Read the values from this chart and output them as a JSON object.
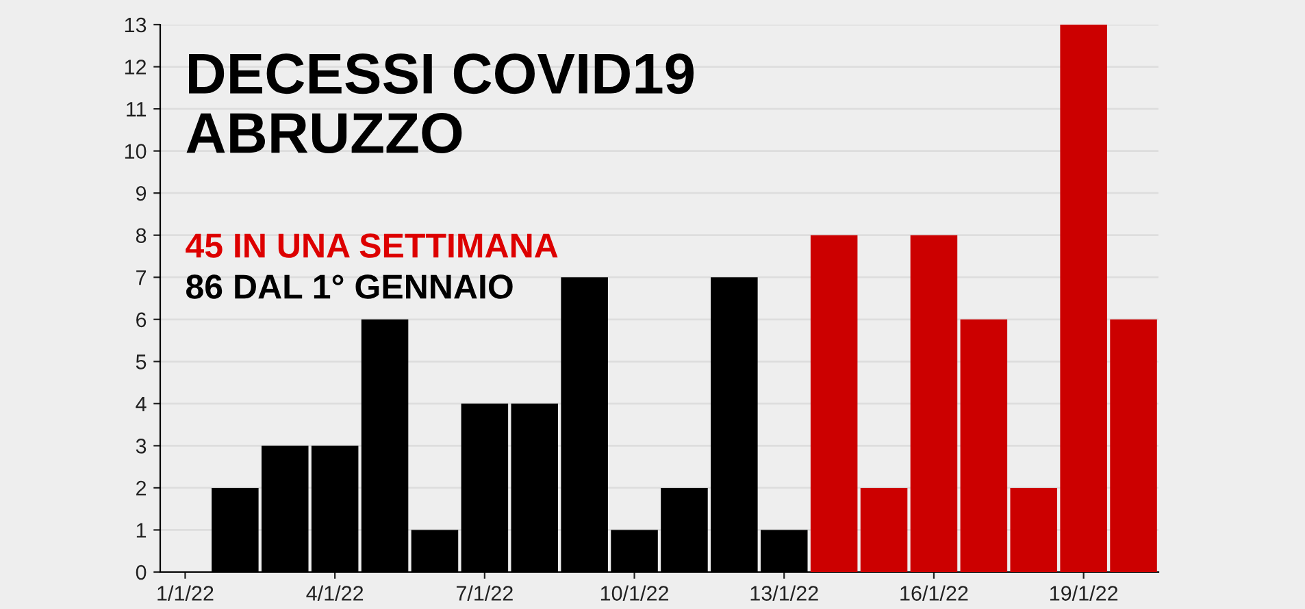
{
  "chart_data": {
    "type": "bar",
    "title": "DECESSI COVID19\nABRUZZO",
    "annotations": [
      "45 IN UNA SETTIMANA",
      "86 DAL 1° GENNAIO"
    ],
    "categories": [
      "1/1/22",
      null,
      null,
      "4/1/22",
      null,
      null,
      "7/1/22",
      null,
      null,
      "10/1/22",
      null,
      null,
      "13/1/22",
      null,
      null,
      "16/1/22",
      null,
      null,
      "19/1/22",
      null
    ],
    "values": [
      0,
      2,
      3,
      3,
      6,
      1,
      4,
      4,
      7,
      1,
      2,
      7,
      1,
      8,
      2,
      8,
      6,
      2,
      13,
      6
    ],
    "colors": [
      "#000000",
      "#000000",
      "#000000",
      "#000000",
      "#000000",
      "#000000",
      "#000000",
      "#000000",
      "#000000",
      "#000000",
      "#000000",
      "#000000",
      "#000000",
      "#cc0000",
      "#cc0000",
      "#cc0000",
      "#cc0000",
      "#cc0000",
      "#cc0000",
      "#cc0000"
    ],
    "ylim": [
      0,
      13
    ],
    "yticks": [
      0,
      1,
      2,
      3,
      4,
      5,
      6,
      7,
      8,
      9,
      10,
      11,
      12,
      13
    ],
    "grid": "y"
  }
}
